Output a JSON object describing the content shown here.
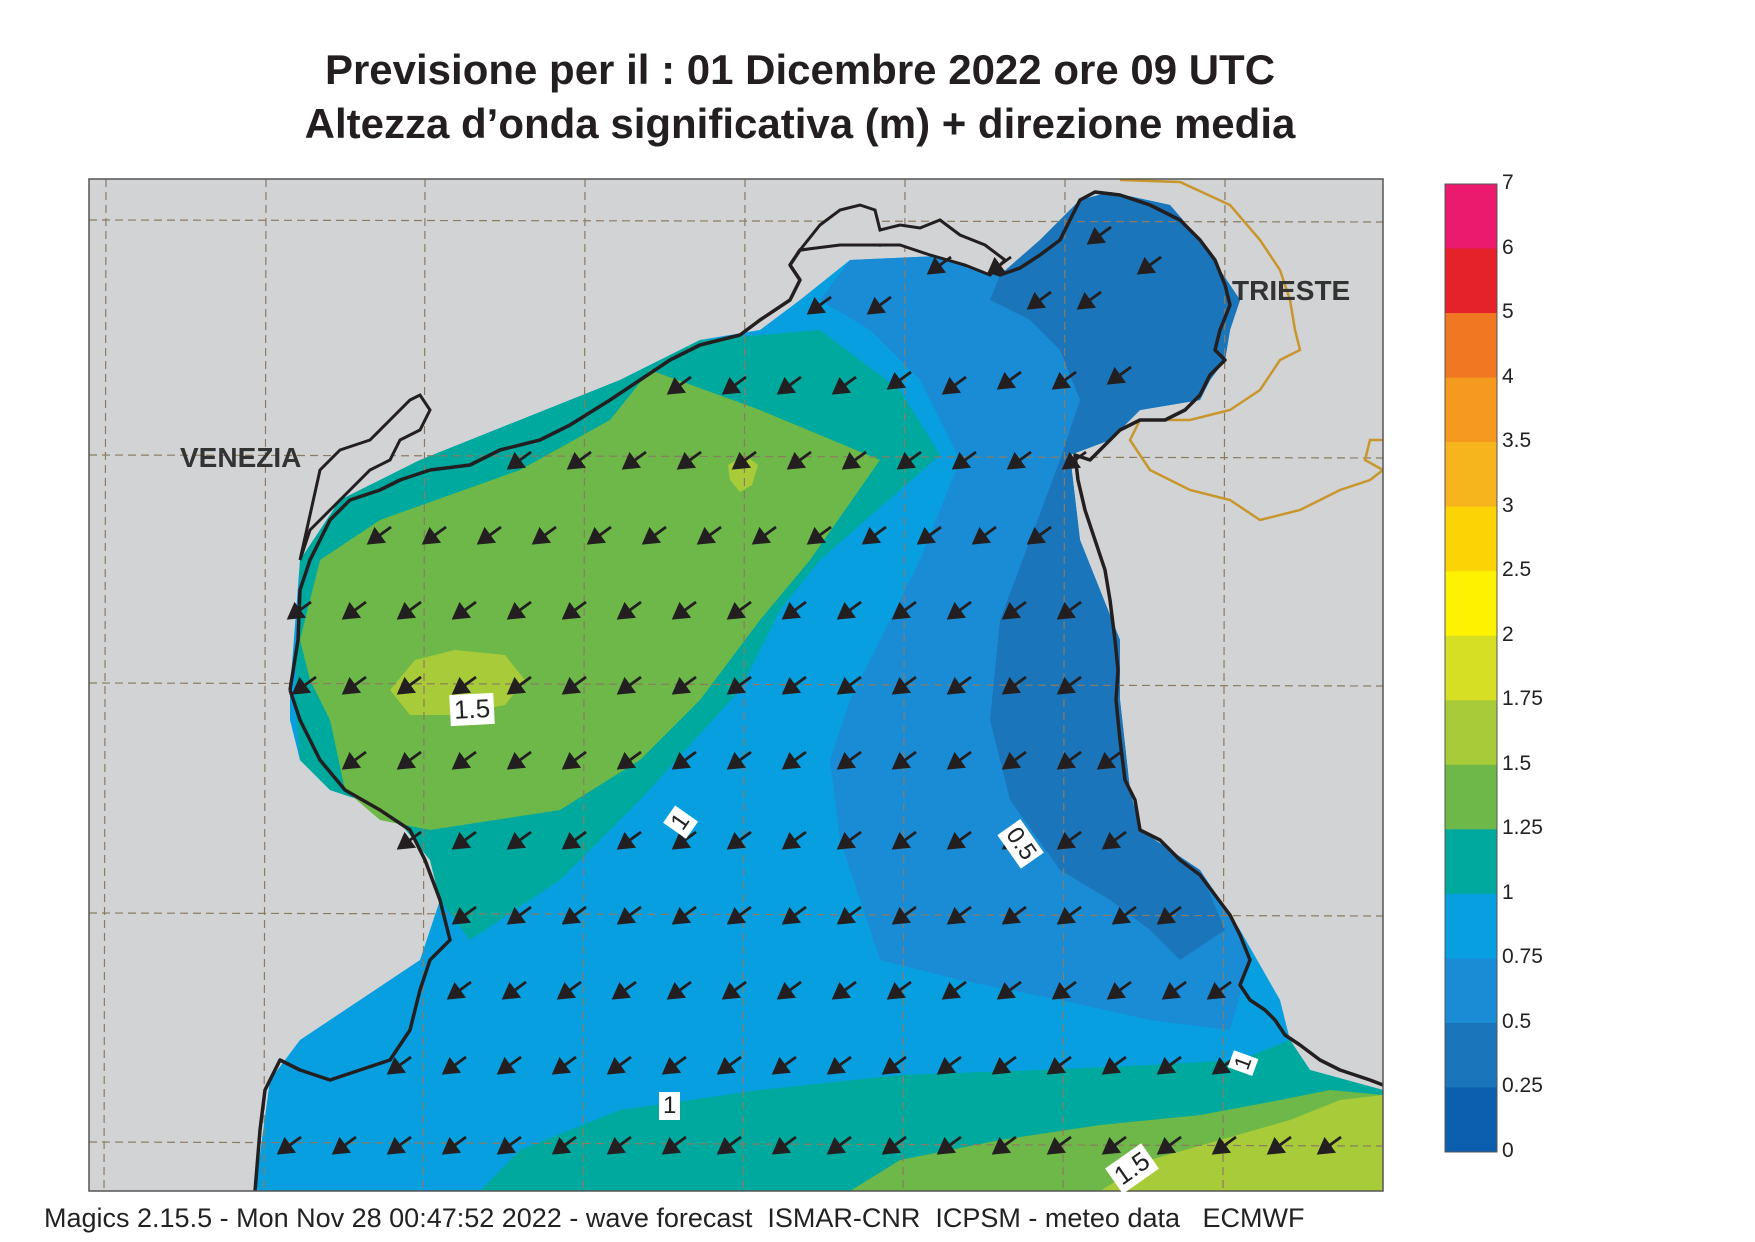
{
  "title": {
    "line1": "Previsione per il  :  01 Dicembre  2022   ore 09 UTC",
    "line2": "Altezza d’onda significativa (m) + direzione media"
  },
  "cities": {
    "venezia": "VENEZIA",
    "trieste": "TRIESTE"
  },
  "contour_labels": {
    "c1": "1.5",
    "c2": "1",
    "c3": "0.5",
    "c4": "1",
    "c5": "1",
    "c6": "1.5"
  },
  "colorbar": {
    "labels": [
      "7",
      "6",
      "5",
      "4",
      "3.5",
      "3",
      "2.5",
      "2",
      "1.75",
      "1.5",
      "1.25",
      "1",
      "0.75",
      "0.5",
      "0.25",
      "0"
    ],
    "colors": [
      "#ec1a6e",
      "#e52229",
      "#f07823",
      "#f59a1e",
      "#f6b51c",
      "#fcd405",
      "#fef200",
      "#d6df23",
      "#a8cb3a",
      "#6db849",
      "#00a99d",
      "#089fe0",
      "#1a8cd6",
      "#1b75bb",
      "#0b5fae"
    ]
  },
  "footer": "Magics 2.15.5 - Mon Nov 28 00:47:52 2022 - wave forecast  ISMAR-CNR  ICPSM - meteo data   ECMWF",
  "colors": {
    "land": "#d1d3d4",
    "coast": "#231f20",
    "border": "#c8962d",
    "grid": "#8c7b62",
    "arrow": "#231f20"
  },
  "wave_direction": "toward south-west"
}
